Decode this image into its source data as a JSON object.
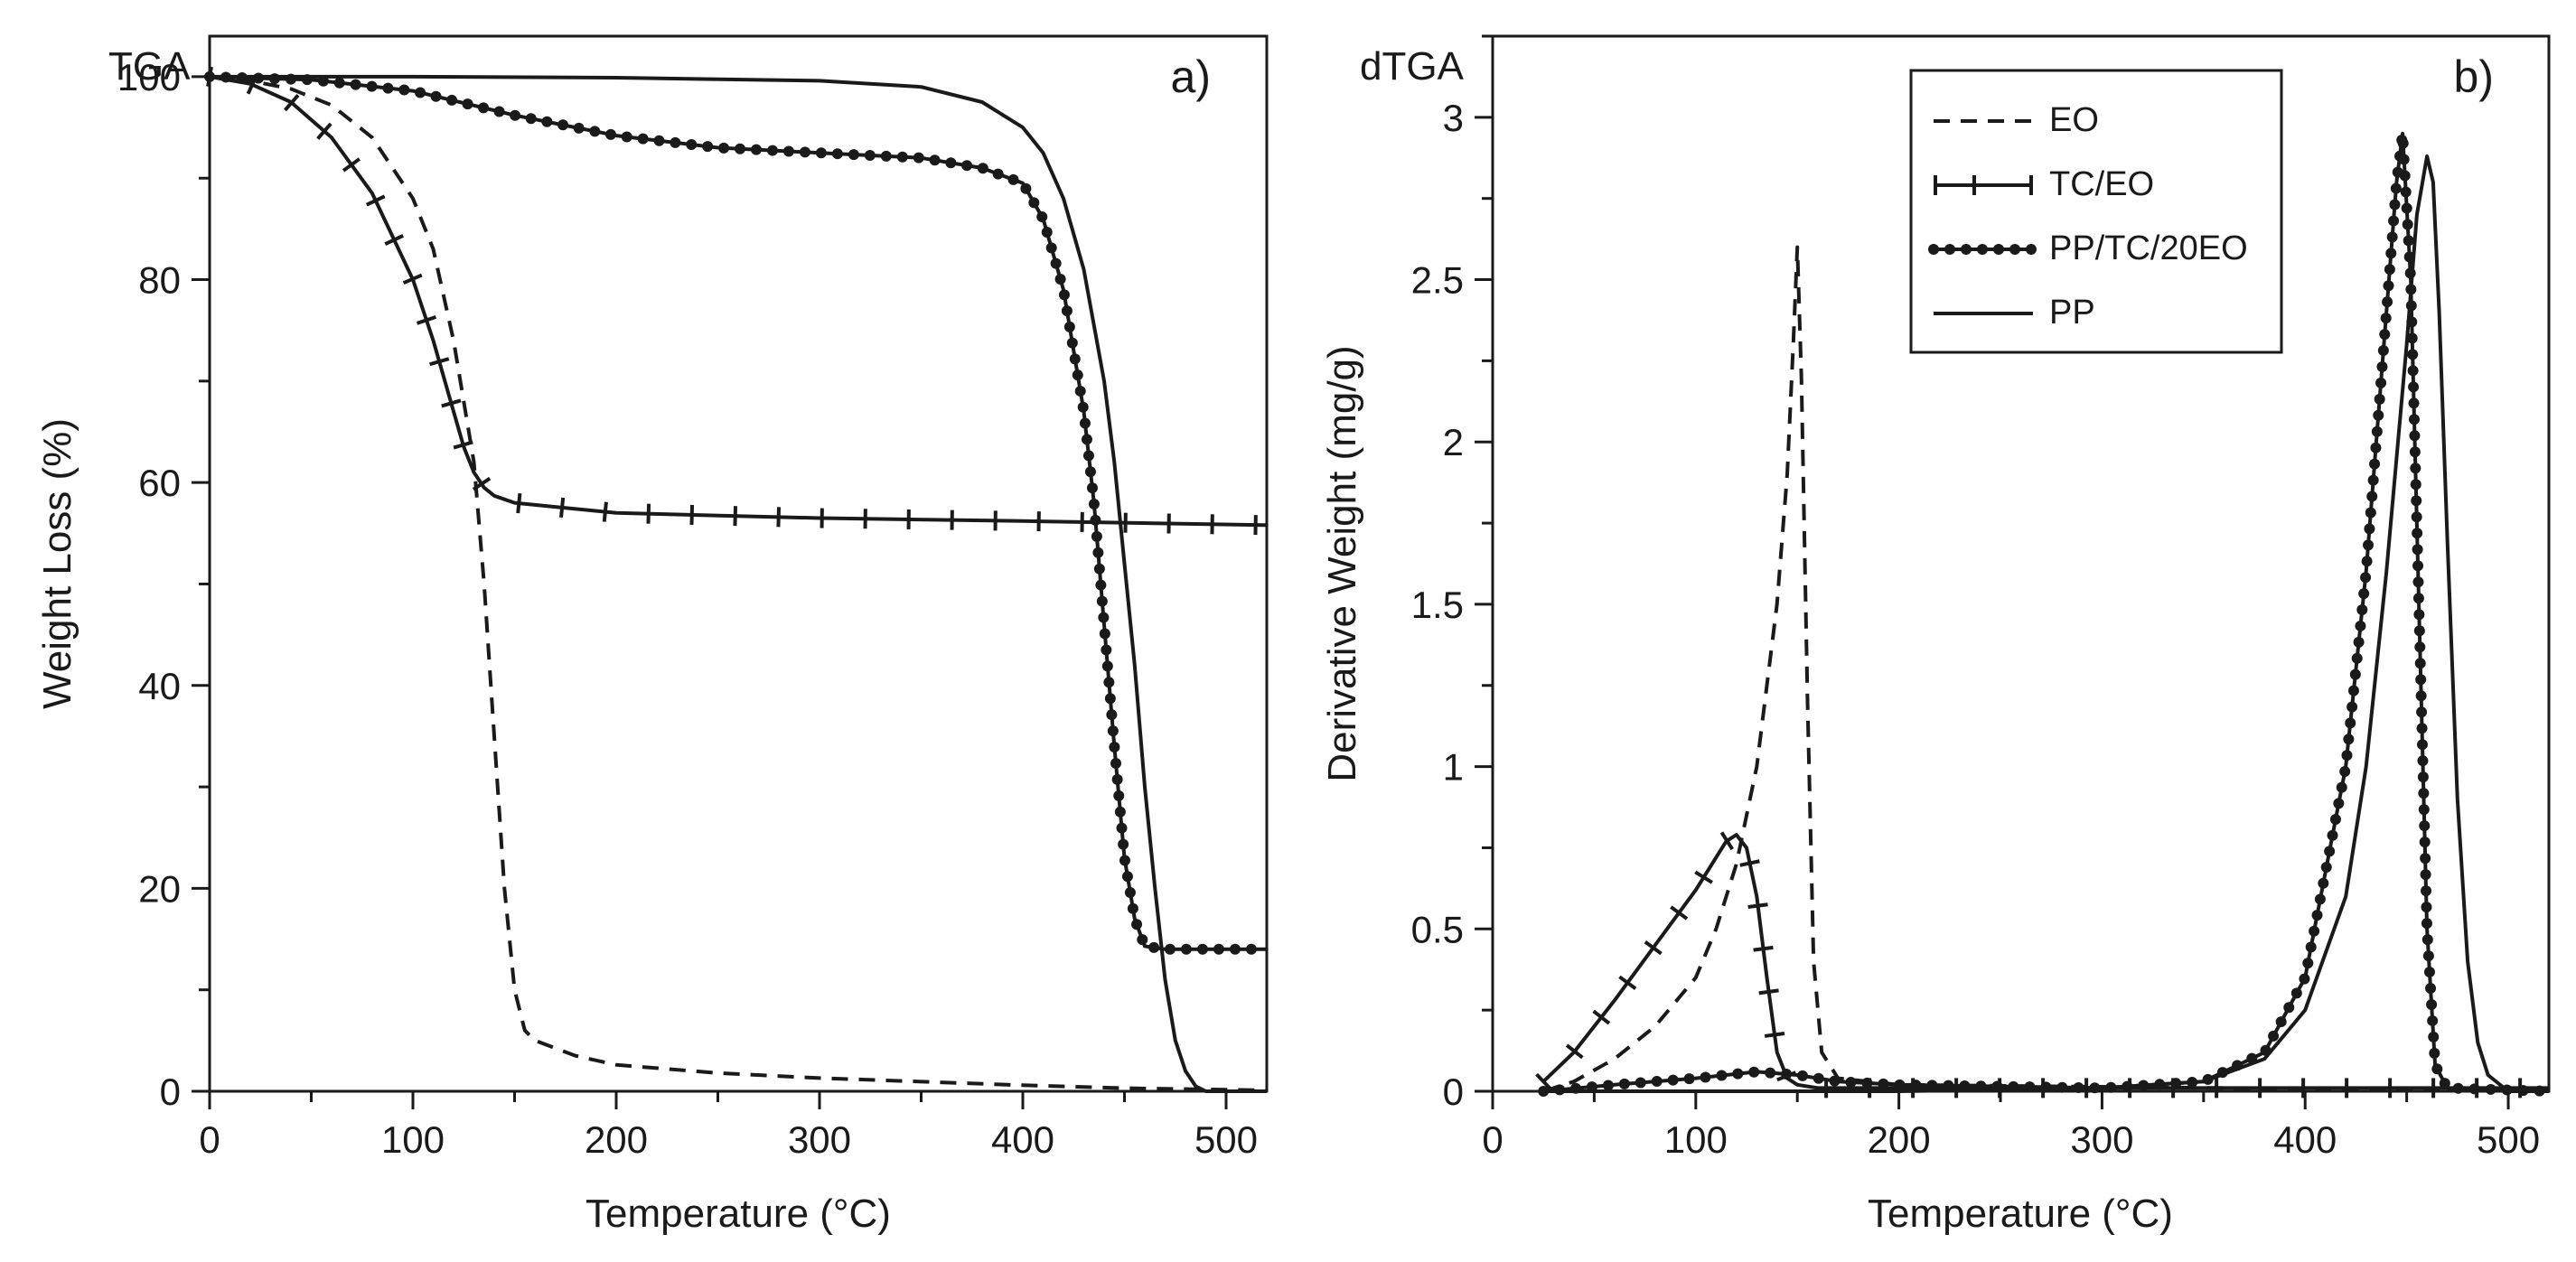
{
  "chart_data": [
    {
      "type": "line",
      "panel_label": "a)",
      "corner_label": "TGA",
      "xlabel": "Temperature (°C)",
      "ylabel": "Weight Loss (%)",
      "xlim": [
        0,
        520
      ],
      "ylim": [
        0,
        104
      ],
      "x_ticks": [
        0,
        100,
        200,
        300,
        400,
        500
      ],
      "x_tick_labels": [
        "0",
        "100",
        "200",
        "300",
        "400",
        "500"
      ],
      "y_ticks": [
        0,
        20,
        40,
        60,
        80,
        100
      ],
      "y_tick_labels": [
        "0",
        "20",
        "40",
        "60",
        "80",
        "100"
      ],
      "grid": false,
      "series": [
        {
          "name": "EO",
          "style": "dashed",
          "color": "#1a1a1a",
          "x": [
            0,
            20,
            40,
            60,
            80,
            100,
            110,
            120,
            130,
            135,
            140,
            145,
            150,
            155,
            160,
            180,
            200,
            250,
            300,
            400,
            450,
            520
          ],
          "y": [
            100,
            99.6,
            98.8,
            97.2,
            94,
            88,
            83,
            74,
            62,
            50,
            35,
            20,
            10,
            6,
            5,
            3.5,
            2.6,
            1.8,
            1.3,
            0.6,
            0.3,
            0.1
          ]
        },
        {
          "name": "TC/EO",
          "style": "bar-marker",
          "color": "#1a1a1a",
          "x": [
            0,
            20,
            40,
            60,
            80,
            100,
            110,
            120,
            125,
            130,
            135,
            140,
            150,
            200,
            300,
            400,
            520
          ],
          "y": [
            100,
            99.3,
            97.5,
            94,
            88.5,
            80,
            74,
            67,
            63.5,
            61,
            59.5,
            58.7,
            58,
            57,
            56.5,
            56.2,
            55.8
          ]
        },
        {
          "name": "PP/TC/20EO",
          "style": "dot-marker",
          "color": "#1a1a1a",
          "x": [
            0,
            50,
            100,
            150,
            200,
            250,
            300,
            350,
            380,
            400,
            410,
            420,
            430,
            435,
            440,
            445,
            450,
            455,
            460,
            470,
            520
          ],
          "y": [
            100,
            99.7,
            98.6,
            96.2,
            94.2,
            93,
            92.5,
            92,
            91,
            89.5,
            86,
            79,
            67,
            58,
            46,
            34,
            23,
            17,
            14.3,
            14,
            14
          ]
        },
        {
          "name": "PP",
          "style": "solid",
          "color": "#1a1a1a",
          "x": [
            0,
            100,
            200,
            300,
            350,
            380,
            400,
            410,
            420,
            430,
            440,
            445,
            450,
            455,
            460,
            465,
            470,
            475,
            480,
            485,
            490,
            520
          ],
          "y": [
            100,
            100,
            99.9,
            99.6,
            99,
            97.5,
            95,
            92.5,
            88,
            81,
            70,
            62,
            52,
            42,
            30,
            20,
            11,
            5,
            2,
            0.5,
            0,
            0
          ]
        }
      ]
    },
    {
      "type": "line",
      "panel_label": "b)",
      "corner_label": "dTGA",
      "xlabel": "Temperature (°C)",
      "ylabel": "Derivative Weight (mg/g)",
      "xlim": [
        0,
        520
      ],
      "ylim": [
        0,
        3.25
      ],
      "x_ticks": [
        0,
        100,
        200,
        300,
        400,
        500
      ],
      "x_tick_labels": [
        "0",
        "100",
        "200",
        "300",
        "400",
        "500"
      ],
      "y_ticks": [
        0,
        0.5,
        1,
        1.5,
        2,
        2.5,
        3
      ],
      "y_tick_labels": [
        "0",
        "0.5",
        "1",
        "1.5",
        "2",
        "2.5",
        "3"
      ],
      "grid": false,
      "legend": {
        "placement": "top-center",
        "entries": [
          "EO",
          "TC/EO",
          "PP/TC/20EO",
          "PP"
        ]
      },
      "series": [
        {
          "name": "EO",
          "style": "dashed",
          "color": "#1a1a1a",
          "x": [
            25,
            40,
            60,
            80,
            100,
            110,
            120,
            130,
            140,
            145,
            148,
            150,
            152,
            155,
            158,
            162,
            170,
            200,
            520
          ],
          "y": [
            0,
            0.03,
            0.1,
            0.2,
            0.35,
            0.5,
            0.7,
            1.0,
            1.5,
            1.9,
            2.3,
            2.6,
            2.2,
            1.2,
            0.4,
            0.12,
            0.04,
            0.02,
            0
          ]
        },
        {
          "name": "TC/EO",
          "style": "bar-marker",
          "color": "#1a1a1a",
          "x": [
            25,
            40,
            60,
            80,
            100,
            110,
            115,
            120,
            125,
            130,
            135,
            140,
            145,
            150,
            160,
            200,
            300,
            400,
            520
          ],
          "y": [
            0.03,
            0.12,
            0.28,
            0.45,
            0.62,
            0.72,
            0.77,
            0.79,
            0.75,
            0.6,
            0.35,
            0.12,
            0.04,
            0.02,
            0.01,
            0.01,
            0.01,
            0.01,
            0.01
          ]
        },
        {
          "name": "PP/TC/20EO",
          "style": "dot-marker",
          "color": "#1a1a1a",
          "x": [
            25,
            60,
            100,
            130,
            150,
            170,
            200,
            300,
            350,
            380,
            400,
            420,
            430,
            440,
            445,
            448,
            452,
            456,
            460,
            464,
            470,
            520
          ],
          "y": [
            0,
            0.02,
            0.04,
            0.06,
            0.05,
            0.03,
            0.02,
            0.01,
            0.03,
            0.12,
            0.35,
            1.0,
            1.6,
            2.4,
            2.8,
            2.95,
            2.5,
            1.5,
            0.5,
            0.08,
            0.01,
            0
          ]
        },
        {
          "name": "PP",
          "style": "solid",
          "color": "#1a1a1a",
          "x": [
            25,
            200,
            300,
            350,
            380,
            400,
            420,
            430,
            440,
            450,
            455,
            460,
            463,
            466,
            470,
            475,
            480,
            485,
            490,
            500,
            520
          ],
          "y": [
            0,
            0,
            0.01,
            0.03,
            0.1,
            0.25,
            0.6,
            1.0,
            1.6,
            2.3,
            2.7,
            2.88,
            2.8,
            2.4,
            1.7,
            0.9,
            0.4,
            0.15,
            0.05,
            0,
            0
          ]
        }
      ]
    }
  ]
}
